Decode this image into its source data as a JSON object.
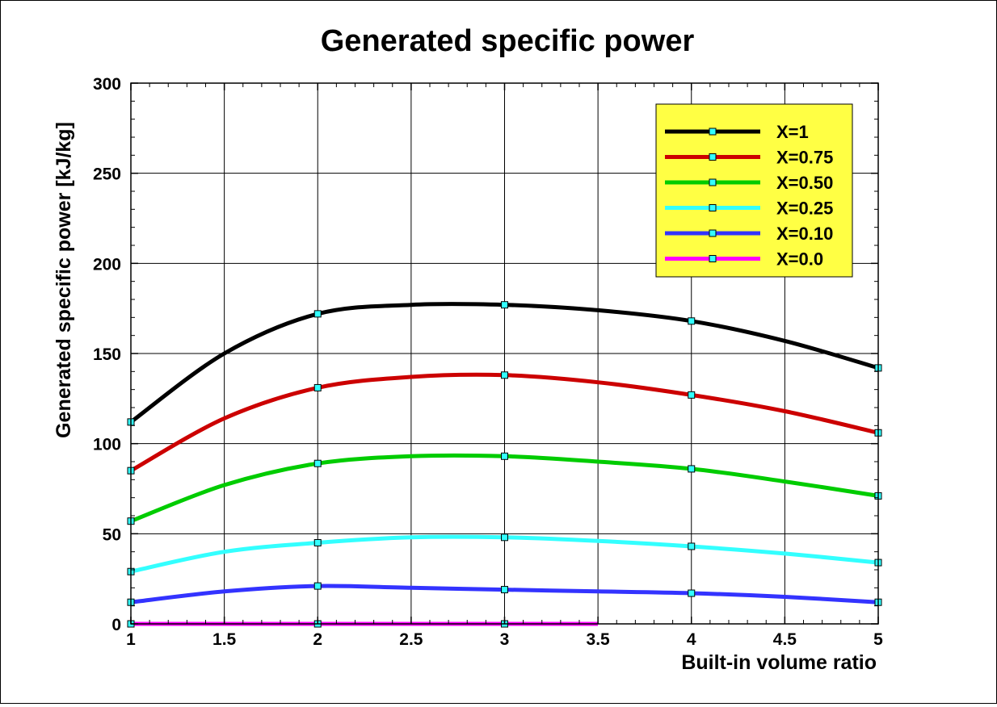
{
  "chart_data": {
    "type": "line",
    "title": "Generated specific power",
    "xlabel": "Built-in volume ratio",
    "ylabel": "Generated specific power [kJ/kg]",
    "xlim": [
      1,
      5
    ],
    "ylim": [
      0,
      300
    ],
    "x_ticks": [
      "1",
      "1.5",
      "2",
      "2.5",
      "3",
      "3.5",
      "4",
      "4.5",
      "5"
    ],
    "y_ticks": [
      "0",
      "50",
      "100",
      "150",
      "200",
      "250",
      "300"
    ],
    "grid": true,
    "legend_position": "top-right",
    "legend_background": "#ffff44",
    "marker_color": "#33ffff",
    "series": [
      {
        "name": "X=1",
        "color": "#000000",
        "curve": [
          [
            1,
            112
          ],
          [
            1.5,
            150
          ],
          [
            2,
            172
          ],
          [
            2.5,
            177
          ],
          [
            3,
            177
          ],
          [
            3.5,
            174
          ],
          [
            4,
            168
          ],
          [
            4.5,
            157
          ],
          [
            5,
            142
          ]
        ],
        "markers": [
          [
            1,
            112
          ],
          [
            2,
            172
          ],
          [
            3,
            177
          ],
          [
            4,
            168
          ],
          [
            5,
            142
          ]
        ]
      },
      {
        "name": "X=0.75",
        "color": "#cc0000",
        "curve": [
          [
            1,
            85
          ],
          [
            1.5,
            114
          ],
          [
            2,
            131
          ],
          [
            2.5,
            137
          ],
          [
            3,
            138
          ],
          [
            3.5,
            134
          ],
          [
            4,
            127
          ],
          [
            4.5,
            118
          ],
          [
            5,
            106
          ]
        ],
        "markers": [
          [
            1,
            85
          ],
          [
            2,
            131
          ],
          [
            3,
            138
          ],
          [
            4,
            127
          ],
          [
            5,
            106
          ]
        ]
      },
      {
        "name": "X=0.50",
        "color": "#00cc00",
        "curve": [
          [
            1,
            57
          ],
          [
            1.5,
            77
          ],
          [
            2,
            89
          ],
          [
            2.5,
            93
          ],
          [
            3,
            93
          ],
          [
            3.5,
            90
          ],
          [
            4,
            86
          ],
          [
            4.5,
            79
          ],
          [
            5,
            71
          ]
        ],
        "markers": [
          [
            1,
            57
          ],
          [
            2,
            89
          ],
          [
            3,
            93
          ],
          [
            4,
            86
          ],
          [
            5,
            71
          ]
        ]
      },
      {
        "name": "X=0.25",
        "color": "#33ffff",
        "curve": [
          [
            1,
            29
          ],
          [
            1.5,
            40
          ],
          [
            2,
            45
          ],
          [
            2.5,
            48
          ],
          [
            3,
            48
          ],
          [
            3.5,
            46
          ],
          [
            4,
            43
          ],
          [
            4.5,
            39
          ],
          [
            5,
            34
          ]
        ],
        "markers": [
          [
            1,
            29
          ],
          [
            2,
            45
          ],
          [
            3,
            48
          ],
          [
            4,
            43
          ],
          [
            5,
            34
          ]
        ]
      },
      {
        "name": "X=0.10",
        "color": "#3333ff",
        "curve": [
          [
            1,
            12
          ],
          [
            1.5,
            18
          ],
          [
            2,
            21
          ],
          [
            2.5,
            20
          ],
          [
            3,
            19
          ],
          [
            3.5,
            18
          ],
          [
            4,
            17
          ],
          [
            4.5,
            15
          ],
          [
            5,
            12
          ]
        ],
        "markers": [
          [
            1,
            12
          ],
          [
            2,
            21
          ],
          [
            3,
            19
          ],
          [
            4,
            17
          ],
          [
            5,
            12
          ]
        ]
      },
      {
        "name": "X=0.0",
        "color": "#ff00ff",
        "curve": [
          [
            1,
            0
          ],
          [
            2,
            0
          ],
          [
            3,
            0
          ],
          [
            3.5,
            0
          ]
        ],
        "markers": [
          [
            1,
            0
          ],
          [
            2,
            0
          ],
          [
            3,
            0
          ]
        ]
      }
    ]
  }
}
